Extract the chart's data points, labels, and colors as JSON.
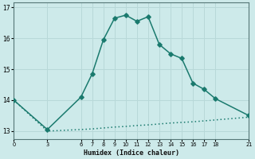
{
  "xlabel": "Humidex (Indice chaleur)",
  "bg_color": "#cdeaea",
  "line_color": "#1a7a6e",
  "grid_color": "#b8d8d8",
  "upper_x": [
    0,
    3,
    6,
    7,
    8,
    9,
    10,
    11,
    12,
    13,
    14,
    15,
    16,
    17,
    18,
    21
  ],
  "upper_y": [
    14.0,
    13.05,
    14.1,
    14.85,
    15.95,
    16.65,
    16.75,
    16.55,
    16.7,
    15.8,
    15.5,
    15.35,
    14.55,
    14.35,
    14.05,
    13.5
  ],
  "lower_x": [
    0,
    3,
    6,
    7,
    8,
    9,
    10,
    11,
    12,
    13,
    14,
    15,
    16,
    17,
    18,
    21
  ],
  "lower_y": [
    14.0,
    13.0,
    13.05,
    13.07,
    13.1,
    13.13,
    13.15,
    13.18,
    13.2,
    13.23,
    13.26,
    13.28,
    13.3,
    13.33,
    13.36,
    13.45
  ],
  "xlim": [
    0,
    21
  ],
  "ylim": [
    12.75,
    17.15
  ],
  "yticks": [
    13,
    14,
    15,
    16,
    17
  ],
  "xticks": [
    0,
    3,
    6,
    7,
    8,
    9,
    10,
    11,
    12,
    13,
    14,
    15,
    16,
    17,
    18,
    21
  ],
  "marker": "D",
  "markersize": 2.8,
  "linewidth": 1.1
}
